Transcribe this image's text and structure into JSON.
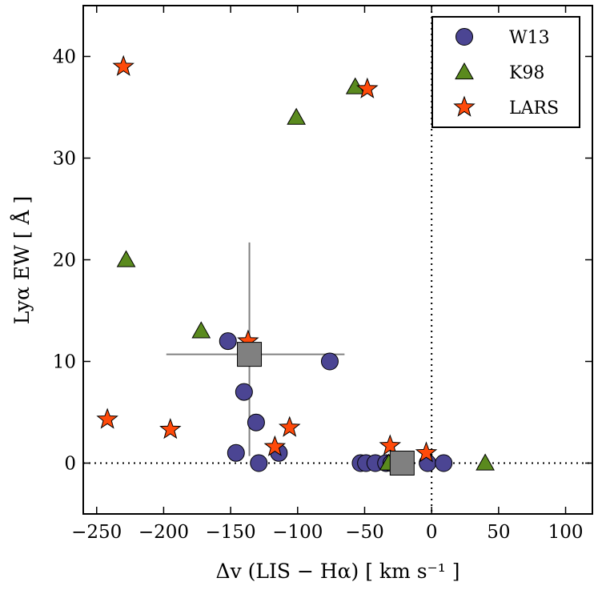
{
  "chart_data": {
    "type": "scatter",
    "title": "",
    "xlabel": "Δv (LIS − Hα) [ km s⁻¹ ]",
    "ylabel": "Lyα EW [ Å ]",
    "xlim": [
      -260,
      120
    ],
    "ylim": [
      -5,
      45
    ],
    "x_ticks": [
      -250,
      -200,
      -150,
      -100,
      -50,
      0,
      50,
      100
    ],
    "x_tick_labels": [
      "−250",
      "−200",
      "−150",
      "−100",
      "−50",
      "0",
      "50",
      "100"
    ],
    "y_ticks": [
      0,
      10,
      20,
      30,
      40
    ],
    "y_tick_labels": [
      "0",
      "10",
      "20",
      "30",
      "40"
    ],
    "grid": false,
    "reference_lines": {
      "vertical_x": 0,
      "horizontal_y": 0,
      "style": "dotted"
    },
    "legend": {
      "position": "top-right"
    },
    "series": [
      {
        "name": "W13",
        "marker": "circle",
        "color": "#4b4593",
        "points": [
          {
            "x": -152,
            "y": 12
          },
          {
            "x": -140,
            "y": 7
          },
          {
            "x": -131,
            "y": 4
          },
          {
            "x": -146,
            "y": 1
          },
          {
            "x": -129,
            "y": 0
          },
          {
            "x": -114,
            "y": 1
          },
          {
            "x": -76,
            "y": 10
          },
          {
            "x": -53,
            "y": 0
          },
          {
            "x": -49,
            "y": 0
          },
          {
            "x": -42,
            "y": 0
          },
          {
            "x": -34,
            "y": 0
          },
          {
            "x": -30,
            "y": 0
          },
          {
            "x": -26,
            "y": 0
          },
          {
            "x": -3,
            "y": 0
          },
          {
            "x": 9,
            "y": 0
          }
        ]
      },
      {
        "name": "K98",
        "marker": "triangle",
        "color": "#5a8a1e",
        "points": [
          {
            "x": -228,
            "y": 20
          },
          {
            "x": -172,
            "y": 13
          },
          {
            "x": -101,
            "y": 34
          },
          {
            "x": -57,
            "y": 37
          },
          {
            "x": -32,
            "y": 0
          },
          {
            "x": 40,
            "y": 0
          }
        ]
      },
      {
        "name": "LARS",
        "marker": "star",
        "color": "#ff4a0a",
        "points": [
          {
            "x": -230,
            "y": 39
          },
          {
            "x": -48,
            "y": 36.8
          },
          {
            "x": -137,
            "y": 12
          },
          {
            "x": -242,
            "y": 4.3
          },
          {
            "x": -195,
            "y": 3.3
          },
          {
            "x": -106,
            "y": 3.5
          },
          {
            "x": -117,
            "y": 1.6
          },
          {
            "x": -31,
            "y": 1.7
          },
          {
            "x": -4,
            "y": 1
          }
        ]
      }
    ],
    "summary_points": [
      {
        "x": -136,
        "y": 10.7,
        "x_err_low": 62,
        "x_err_high": 71,
        "y_err_low": 10,
        "y_err_high": 11
      },
      {
        "x": -22,
        "y": 0,
        "x_err_low": 0,
        "x_err_high": 0,
        "y_err_low": 0,
        "y_err_high": 0
      }
    ],
    "summary_color": "#808080"
  }
}
